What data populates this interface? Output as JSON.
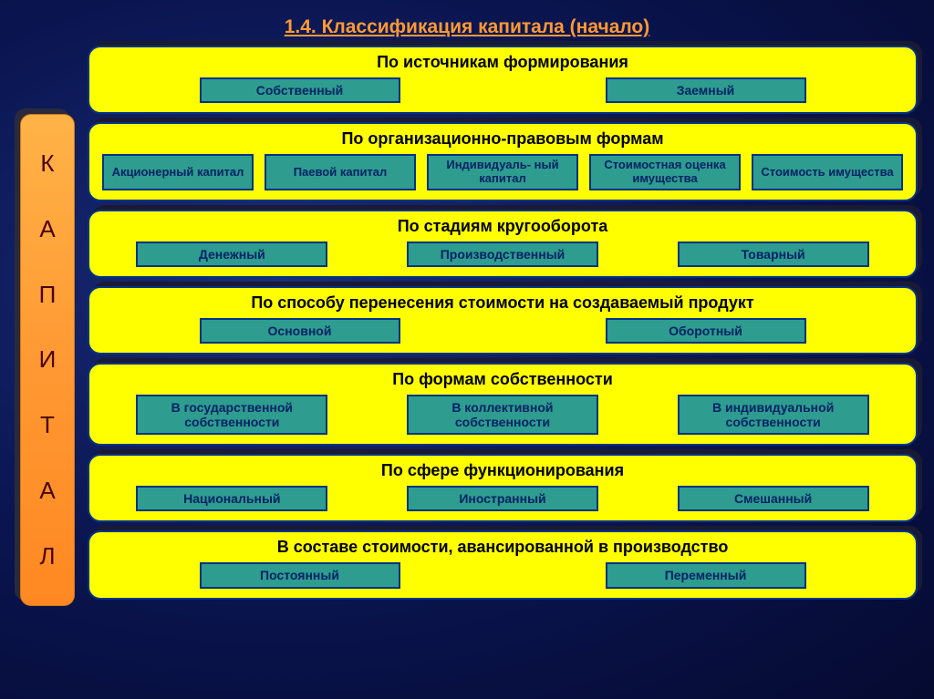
{
  "title": "1.4. Классификация капитала (начало)",
  "sidebar_letters": [
    "К",
    "А",
    "П",
    "И",
    "Т",
    "А",
    "Л"
  ],
  "colors": {
    "background_gradient": [
      "#1a2d7a",
      "#0a1550",
      "#050a30"
    ],
    "title_color": "#ff9933",
    "sidebar_bg": [
      "#ffb347",
      "#ff9933",
      "#ff8822"
    ],
    "sidebar_text": "#4a0000",
    "panel_bg": "#ffff00",
    "panel_border": "#003388",
    "item_bg": "#2e9c8e",
    "item_border": "#003388",
    "item_text": "#002266",
    "shadow": "#1a1a35"
  },
  "panels": [
    {
      "heading": "По источникам формирования",
      "layout": "two",
      "items": [
        "Собственный",
        "Заемный"
      ]
    },
    {
      "heading": "По организационно-правовым формам",
      "layout": "five",
      "items": [
        "Акционерный капитал",
        "Паевой капитал",
        "Индивидуаль-\nный капитал",
        "Стоимостная оценка имущества",
        "Стоимость имущества"
      ]
    },
    {
      "heading": "По стадиям кругооборота",
      "layout": "three",
      "items": [
        "Денежный",
        "Производственный",
        "Товарный"
      ]
    },
    {
      "heading": "По способу перенесения стоимости на создаваемый продукт",
      "layout": "two",
      "items": [
        "Основной",
        "Оборотный"
      ]
    },
    {
      "heading": "По формам собственности",
      "layout": "three",
      "items": [
        "В государственной собственности",
        "В коллективной собственности",
        "В индивидуальной собственности"
      ]
    },
    {
      "heading": "По сфере функционирования",
      "layout": "three",
      "items": [
        "Национальный",
        "Иностранный",
        "Смешанный"
      ]
    },
    {
      "heading": "В составе стоимости, авансированной в производство",
      "layout": "two",
      "items": [
        "Постоянный",
        "Переменный"
      ]
    }
  ]
}
